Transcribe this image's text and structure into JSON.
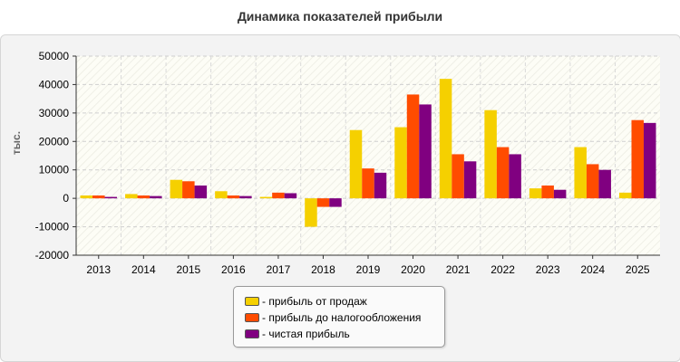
{
  "chart_data": {
    "type": "bar",
    "title": "Динамика показателей прибыли",
    "ylabel": "тыс.",
    "xlabel": "",
    "ylim": [
      -20000,
      50000
    ],
    "yticks": [
      50000,
      40000,
      30000,
      20000,
      10000,
      0,
      -10000,
      -20000
    ],
    "grid": true,
    "legend_position": "bottom",
    "categories": [
      "2013",
      "2014",
      "2015",
      "2016",
      "2017",
      "2018",
      "2019",
      "2020",
      "2021",
      "2022",
      "2023",
      "2024",
      "2025"
    ],
    "series": [
      {
        "name": "- прибыль от продаж",
        "color": "#f5d000",
        "values": [
          1000,
          1500,
          6500,
          2500,
          500,
          -10000,
          24000,
          25000,
          42000,
          31000,
          3500,
          18000,
          2000
        ]
      },
      {
        "name": "- прибыль до налогообложения",
        "color": "#ff4c00",
        "values": [
          1000,
          1000,
          6000,
          1000,
          2000,
          -3000,
          10500,
          36500,
          15500,
          18000,
          4500,
          12000,
          27500
        ]
      },
      {
        "name": "- чистая прибыль",
        "color": "#800080",
        "values": [
          500,
          800,
          4500,
          800,
          1800,
          -3000,
          9000,
          33000,
          13000,
          15500,
          3000,
          10000,
          26500
        ]
      }
    ]
  }
}
